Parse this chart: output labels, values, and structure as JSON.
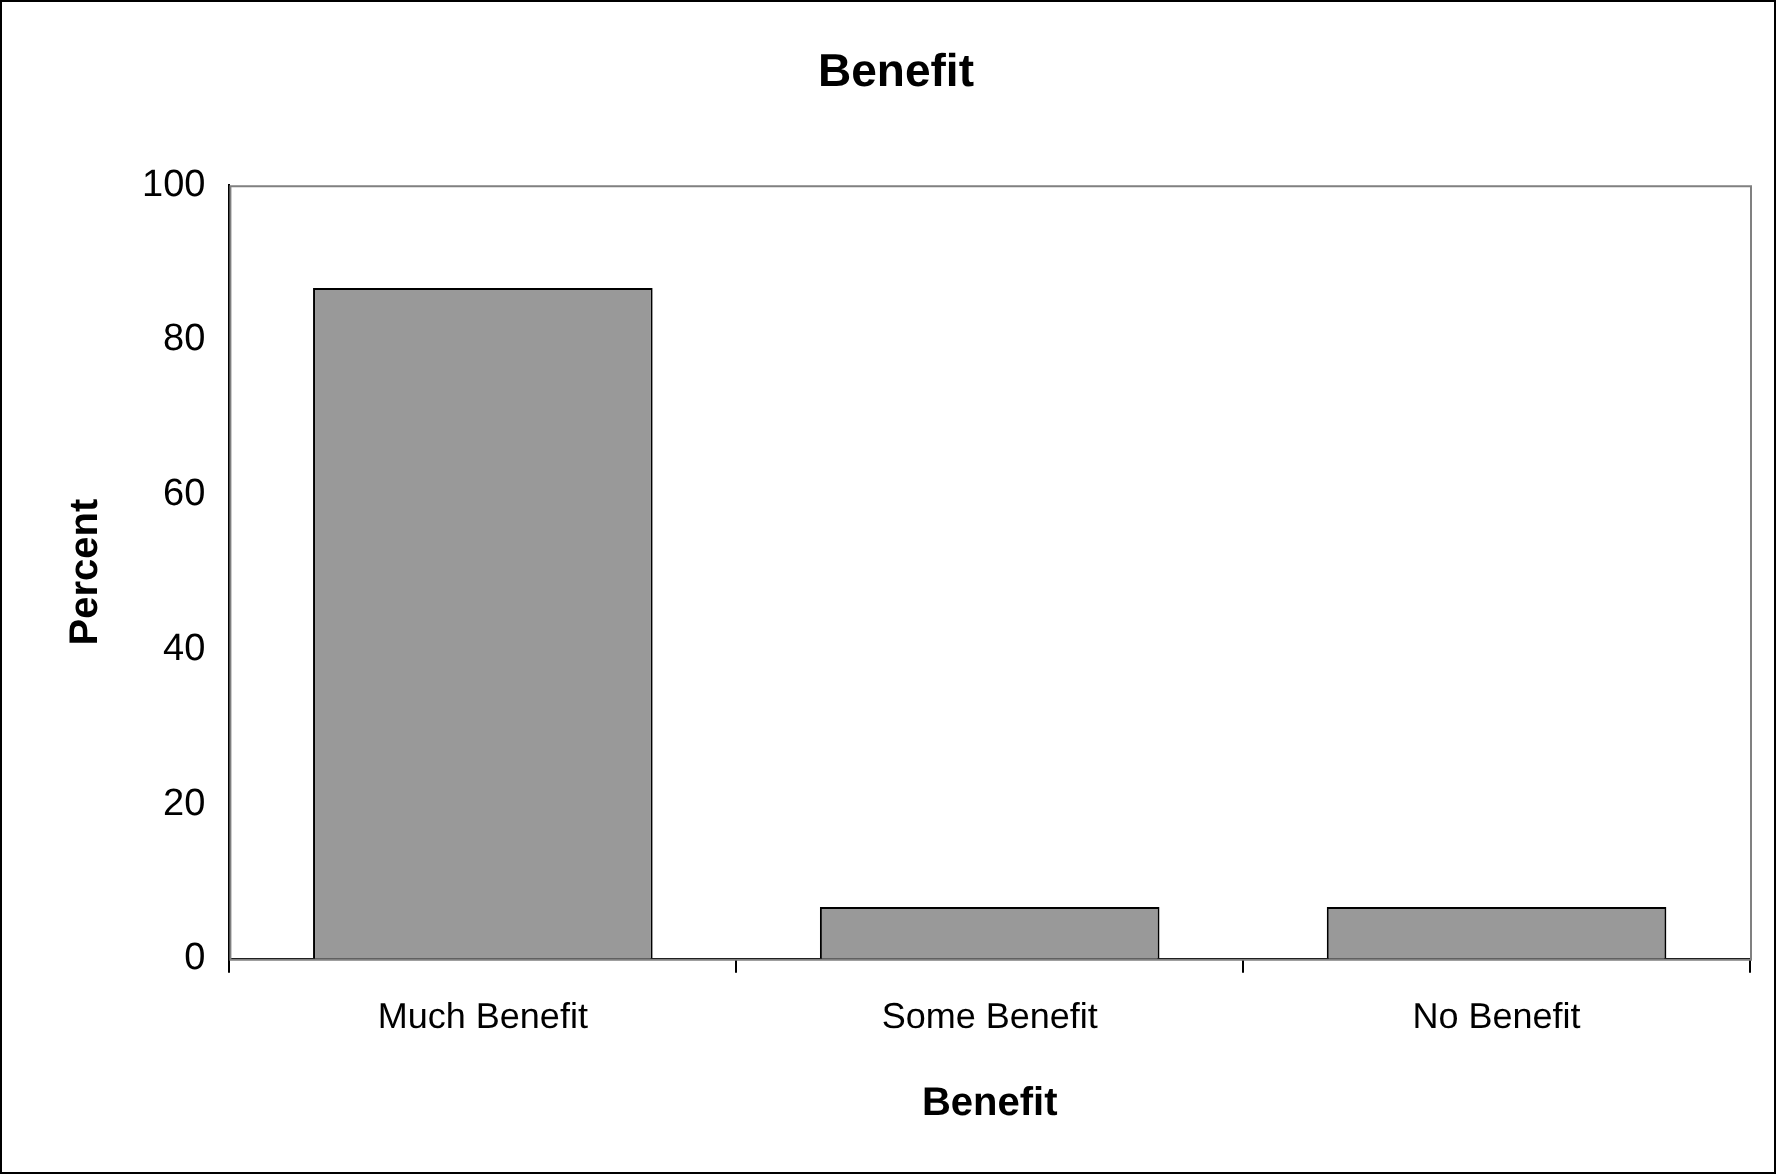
{
  "chart_data": {
    "type": "bar",
    "title": "Benefit",
    "xlabel": "Benefit",
    "ylabel": "Percent",
    "categories": [
      "Much Benefit",
      "Some Benefit",
      "No Benefit"
    ],
    "values": [
      86.7,
      6.7,
      6.7
    ],
    "color": "#999999",
    "ylim": [
      0,
      100
    ],
    "yticks": [
      0,
      20,
      40,
      60,
      80,
      100
    ],
    "grid": false,
    "legend": false
  }
}
